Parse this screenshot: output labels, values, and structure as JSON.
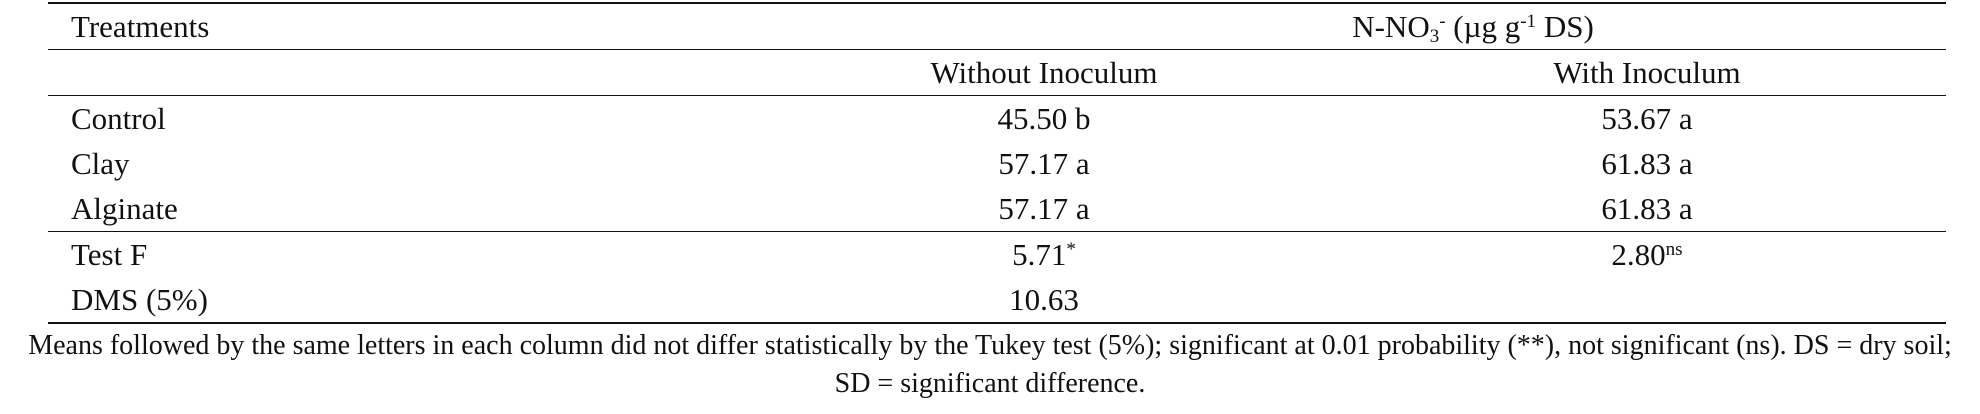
{
  "header": {
    "title": "Treatments",
    "group_parts": [
      "N-NO",
      "3",
      "-",
      " (µg g",
      "-1",
      " DS)"
    ],
    "columns": [
      "Without Inoculum",
      "With Inoculum"
    ]
  },
  "table": {
    "rows": [
      [
        "Control",
        "45.50 b",
        "53.67 a"
      ],
      [
        "Clay",
        "57.17 a",
        "61.83 a"
      ],
      [
        "Alginate",
        "57.17 a",
        "61.83 a"
      ]
    ],
    "stats": [
      [
        "Test F",
        {
          "text": "5.71",
          "sup": "*"
        },
        {
          "text": "2.80",
          "sup": "ns"
        }
      ],
      [
        "DMS (5%)",
        "10.63"
      ]
    ]
  },
  "footnote": "Means followed by the same letters in each column did not differ statistically by the Tukey test (5%); significant at 0.01 probability (**), not significant (ns). DS = dry soil; SD = significant difference."
}
